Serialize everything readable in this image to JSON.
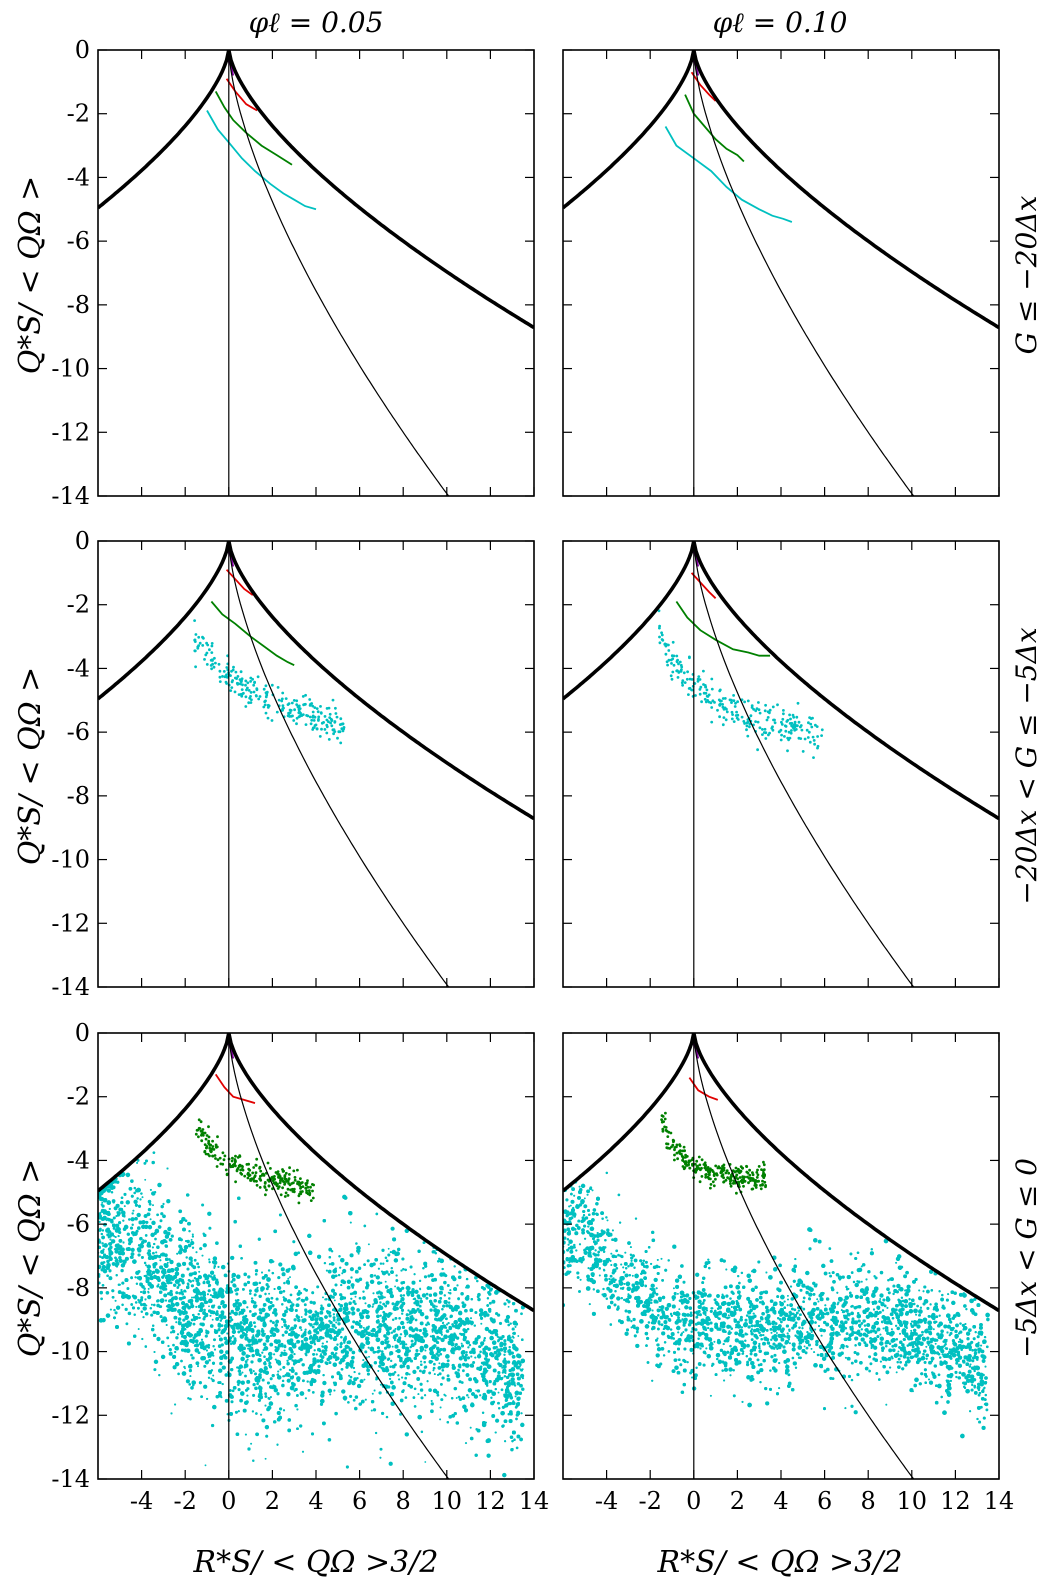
{
  "figure": {
    "column_titles": [
      "φℓ = 0.05",
      "φℓ = 0.10"
    ],
    "row_labels": [
      "G ≤ −20Δx",
      "−20Δx < G ≤ −5Δx",
      "−5Δx < G ≤ 0"
    ],
    "xlabel": "R*S/ < QΩ >3/2",
    "ylabel": "Q*S/ < QΩ >"
  },
  "chart_data": {
    "type": "scatter",
    "layout": "grid 3 rows x 2 columns",
    "xlim": [
      -6,
      14
    ],
    "ylim": [
      -14,
      0
    ],
    "x_ticks": [
      -4,
      -2,
      0,
      2,
      4,
      6,
      8,
      10,
      12,
      14
    ],
    "y_ticks": [
      0,
      -2,
      -4,
      -6,
      -8,
      -10,
      -12,
      -14
    ],
    "x_tick_labels": [
      "-4",
      "-2",
      "0",
      "2",
      "4",
      "6",
      "8",
      "10",
      "12",
      "14"
    ],
    "y_tick_labels": [
      "0",
      "-2",
      "-4",
      "-6",
      "-8",
      "-10",
      "-12",
      "-14"
    ],
    "reference_curves": {
      "boundary": "y = -1.5 * |x|^(2/3)",
      "secondary": "y = -3 * x^(2/3), x >= 0",
      "vertical": "x = 0"
    },
    "colors": {
      "boundary": "#000000",
      "purple": "#8000a0",
      "red": "#e00000",
      "green": "#008000",
      "cyan": "#00c0c0"
    },
    "panels": [
      {
        "row": 0,
        "col": 0,
        "series": [
          {
            "color": "purple",
            "kind": "line",
            "x": [
              -0.05,
              0.1,
              0.2
            ],
            "y": [
              -0.3,
              -0.5,
              -0.8
            ]
          },
          {
            "color": "red",
            "kind": "line",
            "x": [
              -0.1,
              0.3,
              0.8,
              1.3
            ],
            "y": [
              -0.9,
              -1.3,
              -1.7,
              -1.9
            ]
          },
          {
            "color": "green",
            "kind": "line",
            "x": [
              -0.6,
              -0.2,
              0.2,
              0.8,
              1.5,
              2.2,
              2.9
            ],
            "y": [
              -1.3,
              -1.8,
              -2.2,
              -2.6,
              -3.0,
              -3.3,
              -3.6
            ]
          },
          {
            "color": "cyan",
            "kind": "line",
            "x": [
              -1.0,
              -0.5,
              0,
              0.6,
              1.2,
              1.9,
              2.5,
              3.0,
              3.5,
              4.0
            ],
            "y": [
              -1.9,
              -2.5,
              -2.9,
              -3.4,
              -3.8,
              -4.2,
              -4.5,
              -4.7,
              -4.9,
              -5.0
            ]
          }
        ]
      },
      {
        "row": 0,
        "col": 1,
        "series": [
          {
            "color": "purple",
            "kind": "line",
            "x": [
              -0.05,
              0.1,
              0.2
            ],
            "y": [
              -0.3,
              -0.5,
              -0.8
            ]
          },
          {
            "color": "red",
            "kind": "line",
            "x": [
              -0.1,
              0.3,
              0.7,
              1.0
            ],
            "y": [
              -0.7,
              -1.1,
              -1.4,
              -1.6
            ]
          },
          {
            "color": "green",
            "kind": "line",
            "x": [
              -0.4,
              0,
              0.5,
              1.0,
              1.5,
              2.0,
              2.3
            ],
            "y": [
              -1.4,
              -2.0,
              -2.4,
              -2.8,
              -3.1,
              -3.3,
              -3.5
            ]
          },
          {
            "color": "cyan",
            "kind": "line",
            "x": [
              -1.3,
              -0.8,
              0,
              0.8,
              1.5,
              2.2,
              3.0,
              3.6,
              4.1,
              4.5
            ],
            "y": [
              -2.4,
              -3.0,
              -3.4,
              -3.8,
              -4.3,
              -4.7,
              -5.0,
              -5.2,
              -5.3,
              -5.4
            ]
          }
        ]
      },
      {
        "row": 1,
        "col": 0,
        "series": [
          {
            "color": "purple",
            "kind": "line",
            "x": [
              -0.05,
              0.1,
              0.2
            ],
            "y": [
              -0.3,
              -0.5,
              -0.8
            ]
          },
          {
            "color": "red",
            "kind": "line",
            "x": [
              -0.1,
              0.3,
              0.7,
              1.1
            ],
            "y": [
              -0.9,
              -1.2,
              -1.5,
              -1.7
            ]
          },
          {
            "color": "green",
            "kind": "line",
            "x": [
              -0.8,
              -0.3,
              0.3,
              1.0,
              1.6,
              2.2,
              2.7,
              3.0
            ],
            "y": [
              -1.9,
              -2.3,
              -2.6,
              -3.0,
              -3.3,
              -3.6,
              -3.8,
              -3.9
            ]
          },
          {
            "color": "cyan",
            "kind": "band",
            "x": [
              -1.6,
              -1.0,
              -0.5,
              0,
              0.8,
              1.6,
              2.4,
              3.2,
              4.0,
              4.7,
              5.3
            ],
            "y": [
              -3.0,
              -3.6,
              -4.0,
              -4.3,
              -4.6,
              -4.9,
              -5.1,
              -5.3,
              -5.5,
              -5.7,
              -5.8
            ],
            "spread": 0.25
          }
        ]
      },
      {
        "row": 1,
        "col": 1,
        "series": [
          {
            "color": "purple",
            "kind": "line",
            "x": [
              -0.05,
              0.1,
              0.2
            ],
            "y": [
              -0.3,
              -0.5,
              -0.8
            ]
          },
          {
            "color": "red",
            "kind": "line",
            "x": [
              -0.1,
              0.3,
              0.7,
              1.0
            ],
            "y": [
              -1.0,
              -1.3,
              -1.6,
              -1.8
            ]
          },
          {
            "color": "green",
            "kind": "line",
            "x": [
              -0.8,
              -0.3,
              0.3,
              1.0,
              1.8,
              2.5,
              3.0,
              3.5
            ],
            "y": [
              -1.9,
              -2.4,
              -2.8,
              -3.1,
              -3.4,
              -3.5,
              -3.6,
              -3.6
            ]
          },
          {
            "color": "cyan",
            "kind": "band",
            "x": [
              -1.6,
              -1.0,
              -0.3,
              0.5,
              1.3,
              2.2,
              3.0,
              3.8,
              4.6,
              5.3,
              5.9
            ],
            "y": [
              -3.0,
              -3.8,
              -4.3,
              -4.8,
              -5.2,
              -5.5,
              -5.7,
              -5.8,
              -5.9,
              -6.0,
              -6.1
            ],
            "spread": 0.3
          }
        ]
      },
      {
        "row": 2,
        "col": 0,
        "series": [
          {
            "color": "purple",
            "kind": "line",
            "x": [
              -0.05,
              0.1,
              0.2
            ],
            "y": [
              -0.3,
              -0.5,
              -0.8
            ]
          },
          {
            "color": "red",
            "kind": "line",
            "x": [
              -0.6,
              -0.2,
              0.2,
              0.7,
              1.2
            ],
            "y": [
              -1.3,
              -1.7,
              -2.0,
              -2.1,
              -2.2
            ]
          },
          {
            "color": "green",
            "kind": "band",
            "x": [
              -1.5,
              -1.0,
              -0.5,
              0,
              0.8,
              1.6,
              2.4,
              3.2,
              3.9
            ],
            "y": [
              -2.8,
              -3.5,
              -3.9,
              -4.2,
              -4.4,
              -4.5,
              -4.6,
              -4.8,
              -5.0
            ],
            "spread": 0.2
          },
          {
            "color": "cyan",
            "kind": "cloud",
            "x": [
              -6,
              -5,
              -4,
              -3,
              -2,
              -1,
              0,
              2,
              4,
              6,
              8,
              10,
              12,
              13.5
            ],
            "y": [
              -6.3,
              -6.3,
              -6.8,
              -7.8,
              -8.5,
              -9.0,
              -9.4,
              -9.6,
              -9.5,
              -9.3,
              -9.3,
              -9.5,
              -10.3,
              -11.0
            ],
            "spread": 1.6,
            "count": 5200
          }
        ]
      },
      {
        "row": 2,
        "col": 1,
        "series": [
          {
            "color": "purple",
            "kind": "line",
            "x": [
              -0.05,
              0.1,
              0.2
            ],
            "y": [
              -0.3,
              -0.5,
              -0.8
            ]
          },
          {
            "color": "red",
            "kind": "line",
            "x": [
              -0.2,
              0.2,
              0.7,
              1.1
            ],
            "y": [
              -1.4,
              -1.8,
              -2.0,
              -2.1
            ]
          },
          {
            "color": "green",
            "kind": "band",
            "x": [
              -1.5,
              -1.0,
              -0.5,
              0,
              0.8,
              1.6,
              2.4,
              3.0,
              3.3
            ],
            "y": [
              -2.7,
              -3.5,
              -3.9,
              -4.2,
              -4.4,
              -4.5,
              -4.5,
              -4.6,
              -4.6
            ],
            "spread": 0.2
          },
          {
            "color": "cyan",
            "kind": "cloud",
            "x": [
              -6,
              -5,
              -4,
              -3,
              -2,
              -1,
              0,
              2,
              4,
              6,
              8,
              10,
              12,
              13.5
            ],
            "y": [
              -6.3,
              -6.3,
              -7.0,
              -8.0,
              -8.6,
              -9.0,
              -9.2,
              -9.3,
              -9.2,
              -9.0,
              -9.0,
              -9.3,
              -10.0,
              -10.8
            ],
            "spread": 1.1,
            "count": 4200
          }
        ]
      }
    ]
  }
}
